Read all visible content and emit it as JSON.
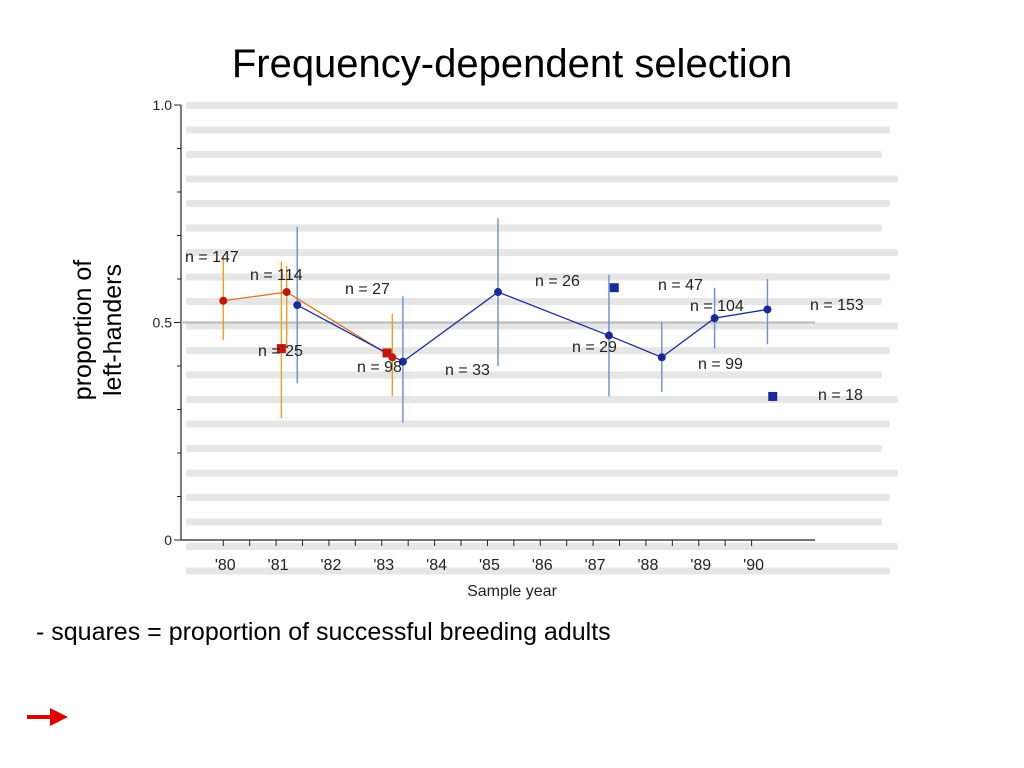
{
  "slide": {
    "title": "Frequency-dependent selection",
    "ylabel_line1": "proportion of",
    "ylabel_line2": "left-handers",
    "caption": "- squares = proportion of successful breeding adults",
    "nav_icon": "right-arrow-icon",
    "nav_color": "#e00000"
  },
  "chart_data": {
    "type": "scatter",
    "xlabel": "Sample year",
    "ylabel": "",
    "categories": [
      "'80",
      "'81",
      "'82",
      "'83",
      "'84",
      "'85",
      "'86",
      "'87",
      "'88",
      "'89",
      "'90"
    ],
    "x_values": [
      80,
      81,
      82,
      83,
      84,
      85,
      86,
      87,
      88,
      89,
      90
    ],
    "xlim": [
      79.2,
      91.2
    ],
    "ylim": [
      0,
      1.0
    ],
    "y_ticks": [
      {
        "value": 0,
        "label": "0"
      },
      {
        "value": 0.5,
        "label": "0.5"
      },
      {
        "value": 1.0,
        "label": "1.0"
      }
    ],
    "reference_line": 0.5,
    "grid": false,
    "colors": {
      "red_series": "#c0180c",
      "red_error": "#e8a020",
      "blue_series": "#1a2a9a",
      "blue_error": "#6a90c8",
      "reference": "#b8b8b8",
      "axis": "#222222"
    },
    "series": [
      {
        "marker": "circle",
        "color": "red",
        "points": [
          {
            "x": 80.0,
            "y": 0.55,
            "err": [
              0.46,
              0.65
            ],
            "n": "n = 147"
          },
          {
            "x": 81.2,
            "y": 0.57,
            "err": [
              0.44,
              0.63
            ],
            "n": "n = 114"
          },
          {
            "x": 83.2,
            "y": 0.42,
            "err": [
              0.33,
              0.52
            ],
            "n": ""
          }
        ]
      },
      {
        "marker": "circle",
        "color": "blue",
        "points": [
          {
            "x": 81.4,
            "y": 0.54,
            "err": [
              0.36,
              0.72
            ],
            "n": "n = 27"
          },
          {
            "x": 83.4,
            "y": 0.41,
            "err": [
              0.27,
              0.56
            ],
            "n": "n = 33"
          },
          {
            "x": 85.2,
            "y": 0.57,
            "err": [
              0.4,
              0.74
            ],
            "n": "n = 26"
          },
          {
            "x": 87.3,
            "y": 0.47,
            "err": [
              0.33,
              0.61
            ],
            "n": "n = 29"
          },
          {
            "x": 88.3,
            "y": 0.42,
            "err": [
              0.34,
              0.5
            ],
            "n": "n = 99"
          },
          {
            "x": 89.3,
            "y": 0.51,
            "err": [
              0.44,
              0.58
            ],
            "n": "n = 104"
          },
          {
            "x": 90.3,
            "y": 0.53,
            "err": [
              0.45,
              0.6
            ],
            "n": "n = 153"
          }
        ]
      },
      {
        "marker": "square",
        "color": "red",
        "points": [
          {
            "x": 81.1,
            "y": 0.44,
            "err": [
              0.28,
              0.64
            ],
            "n": "n = 25"
          },
          {
            "x": 83.1,
            "y": 0.43,
            "err": null,
            "n": "n = 98"
          }
        ]
      },
      {
        "marker": "square",
        "color": "blue",
        "points": [
          {
            "x": 87.4,
            "y": 0.58,
            "err": null,
            "n": "n = 47"
          },
          {
            "x": 90.4,
            "y": 0.33,
            "err": null,
            "n": "n = 18"
          }
        ]
      }
    ]
  }
}
